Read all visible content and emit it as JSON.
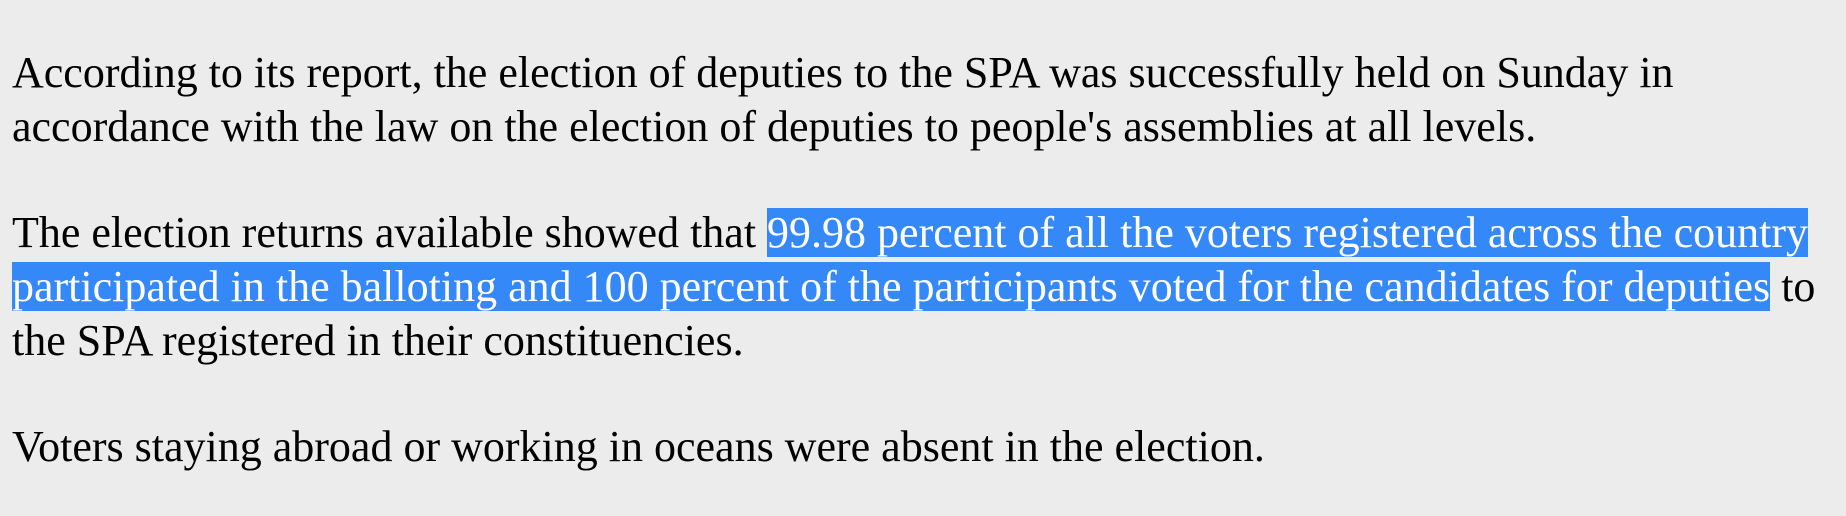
{
  "paragraphs": [
    {
      "text": "According to its report, the election of deputies to the SPA was successfully held on Sunday in accordance with the law on the election of deputies to people's assemblies at all levels."
    },
    {
      "before": "The election returns available showed that ",
      "selected": "99.98 percent of all the voters registered across the country participated in the balloting and 100 percent of the participants voted for the candidates for deputies",
      "after": " to the SPA registered in their constituencies."
    },
    {
      "text": "Voters staying abroad or working in oceans were absent in the election."
    }
  ]
}
